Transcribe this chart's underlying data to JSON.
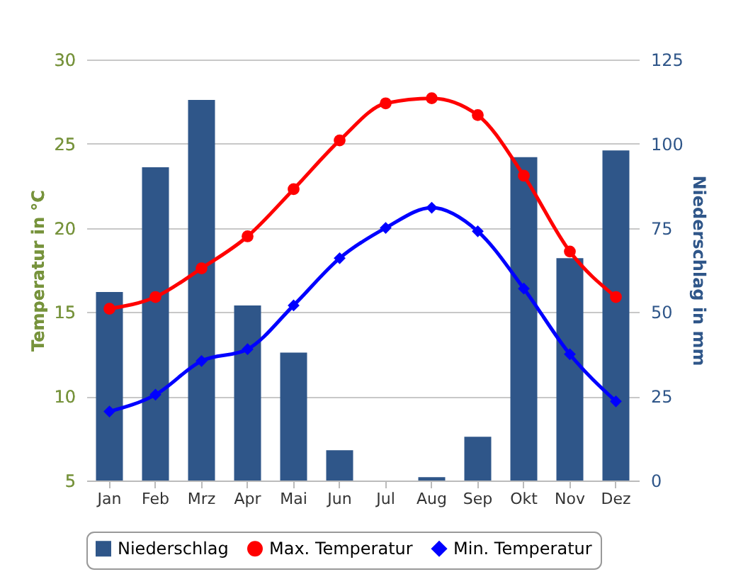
{
  "chart_data": {
    "type": "bar",
    "ylabel": "Temperatur in °C",
    "y2label": "Niederschlag in mm",
    "categories": [
      "Jan",
      "Feb",
      "Mrz",
      "Apr",
      "Mai",
      "Jun",
      "Jul",
      "Aug",
      "Sep",
      "Okt",
      "Nov",
      "Dez"
    ],
    "series": [
      {
        "name": "Niederschlag",
        "axis": "y2",
        "color": "#2f5689",
        "values": [
          56,
          93,
          113,
          52,
          38,
          9,
          0,
          1,
          13,
          96,
          66,
          98
        ]
      },
      {
        "name": "Max. Temperatur",
        "type": "line",
        "color": "#ff0000",
        "marker": "circle",
        "values": [
          15.2,
          15.9,
          17.6,
          19.5,
          22.3,
          25.2,
          27.4,
          27.7,
          26.7,
          23.1,
          18.6,
          15.9
        ]
      },
      {
        "name": "Min. Temperatur",
        "type": "line",
        "color": "#0000ff",
        "marker": "diamond",
        "values": [
          9.1,
          10.1,
          12.1,
          12.8,
          15.4,
          18.2,
          20.0,
          21.2,
          19.8,
          16.4,
          12.5,
          9.7
        ]
      }
    ],
    "ylim": [
      5,
      30
    ],
    "yticks": [
      5,
      10,
      15,
      20,
      25,
      30
    ],
    "y2lim": [
      0,
      125
    ],
    "y2ticks": [
      0,
      25,
      50,
      75,
      100,
      125
    ],
    "grid": "y",
    "legend": "bottom"
  }
}
